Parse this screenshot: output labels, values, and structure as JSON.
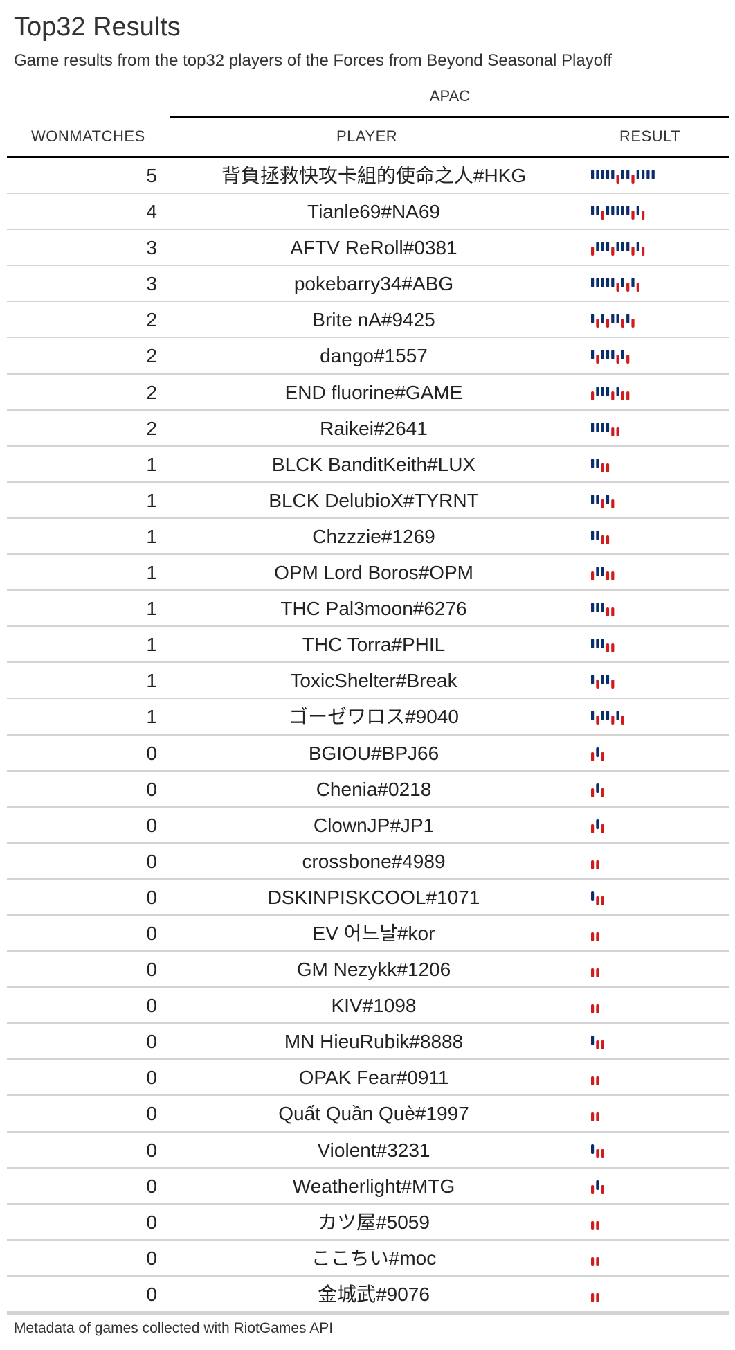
{
  "title": "Top32 Results",
  "subtitle": "Game results from the top32 players of the Forces from Beyond Seasonal Playoff",
  "spanner": "APAC",
  "columns": {
    "won": "WONMATCHES",
    "player": "PLAYER",
    "result": "RESULT"
  },
  "source": "Metadata of games collected with RiotGames API",
  "colors": {
    "win": "#0a2d6b",
    "loss": "#d01c1c"
  },
  "chart_data": {
    "type": "table",
    "result_legend": {
      "W": "win (tall bar)",
      "L": "loss (short bar)"
    },
    "rows": [
      {
        "won": 5,
        "player": "背負拯救快攻卡組的使命之人#HKG",
        "results": "WWWWWLWWLWWWW"
      },
      {
        "won": 4,
        "player": "Tianle69#NA69",
        "results": "WWLWWWWWLWL"
      },
      {
        "won": 3,
        "player": "AFTV ReRoll#0381",
        "results": "LWWWLWWWLWL"
      },
      {
        "won": 3,
        "player": "pokebarry34#ABG",
        "results": "WWWWWLWLWL"
      },
      {
        "won": 2,
        "player": "Brite nA#9425",
        "results": "WLWLWWLWL"
      },
      {
        "won": 2,
        "player": "dango#1557",
        "results": "WLWWWLWL"
      },
      {
        "won": 2,
        "player": "END fluorine#GAME",
        "results": "LWWWLWLL"
      },
      {
        "won": 2,
        "player": "Raikei#2641",
        "results": "WWWWLL"
      },
      {
        "won": 1,
        "player": "BLCK BanditKeith#LUX",
        "results": "WWLL"
      },
      {
        "won": 1,
        "player": "BLCK DelubioX#TYRNT",
        "results": "WWLWL"
      },
      {
        "won": 1,
        "player": "Chzzzie#1269",
        "results": "WWLL"
      },
      {
        "won": 1,
        "player": "OPM Lord Boros#OPM",
        "results": "LWWLL"
      },
      {
        "won": 1,
        "player": "THC Pal3moon#6276",
        "results": "WWWLL"
      },
      {
        "won": 1,
        "player": "THC Torra#PHIL",
        "results": "WWWLL"
      },
      {
        "won": 1,
        "player": "ToxicShelter#Break",
        "results": "WLWWL"
      },
      {
        "won": 1,
        "player": "ゴーゼワロス#9040",
        "results": "WLWWLWL"
      },
      {
        "won": 0,
        "player": "BGIOU#BPJ66",
        "results": "LWL"
      },
      {
        "won": 0,
        "player": "Chenia#0218",
        "results": "LWL"
      },
      {
        "won": 0,
        "player": "ClownJP#JP1",
        "results": "LWL"
      },
      {
        "won": 0,
        "player": "crossbone#4989",
        "results": "LL"
      },
      {
        "won": 0,
        "player": "DSKINPISKCOOL#1071",
        "results": "WLL"
      },
      {
        "won": 0,
        "player": "EV 어느날#kor",
        "results": "LL"
      },
      {
        "won": 0,
        "player": "GM Nezykk#1206",
        "results": "LL"
      },
      {
        "won": 0,
        "player": "KIV#1098",
        "results": "LL"
      },
      {
        "won": 0,
        "player": "MN HieuRubik#8888",
        "results": "WLL"
      },
      {
        "won": 0,
        "player": "OPAK Fear#0911",
        "results": "LL"
      },
      {
        "won": 0,
        "player": "Quất Quần Què#1997",
        "results": "LL"
      },
      {
        "won": 0,
        "player": "Violent#3231",
        "results": "WLL"
      },
      {
        "won": 0,
        "player": "Weatherlight#MTG",
        "results": "LWL"
      },
      {
        "won": 0,
        "player": "カツ屋#5059",
        "results": "LL"
      },
      {
        "won": 0,
        "player": "ここちい#moc",
        "results": "LL"
      },
      {
        "won": 0,
        "player": "金城武#9076",
        "results": "LL"
      }
    ]
  }
}
